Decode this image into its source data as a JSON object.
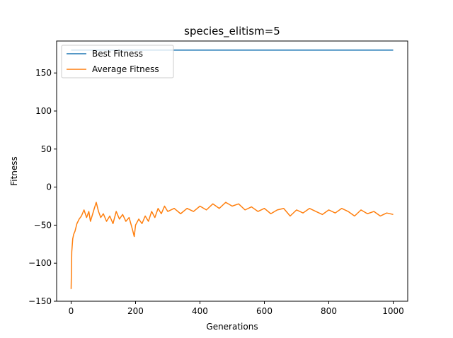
{
  "chart_data": {
    "type": "line",
    "title": "species_elitism=5",
    "xlabel": "Generations",
    "ylabel": "Fitness",
    "xlim": [
      -45,
      1045
    ],
    "ylim": [
      -150,
      192
    ],
    "xticks": [
      0,
      200,
      400,
      600,
      800,
      1000
    ],
    "yticks": [
      -150,
      -100,
      -50,
      0,
      50,
      100,
      150
    ],
    "xtick_labels": [
      "0",
      "200",
      "400",
      "600",
      "800",
      "1000"
    ],
    "ytick_labels": [
      "−150",
      "−100",
      "−50",
      "0",
      "50",
      "100",
      "150"
    ],
    "legend_position": "top-left",
    "grid": false,
    "series": [
      {
        "name": "Best Fitness",
        "color": "#1f77b4",
        "points": [
          [
            0,
            180
          ],
          [
            1000,
            180
          ]
        ]
      },
      {
        "name": "Average Fitness",
        "color": "#ff7f0e",
        "points": [
          [
            0,
            -134
          ],
          [
            2,
            -85
          ],
          [
            5,
            -68
          ],
          [
            8,
            -62
          ],
          [
            12,
            -58
          ],
          [
            18,
            -48
          ],
          [
            25,
            -42
          ],
          [
            32,
            -38
          ],
          [
            40,
            -30
          ],
          [
            48,
            -40
          ],
          [
            55,
            -32
          ],
          [
            60,
            -45
          ],
          [
            65,
            -38
          ],
          [
            72,
            -28
          ],
          [
            78,
            -20
          ],
          [
            85,
            -32
          ],
          [
            92,
            -40
          ],
          [
            100,
            -35
          ],
          [
            110,
            -45
          ],
          [
            120,
            -38
          ],
          [
            130,
            -48
          ],
          [
            140,
            -32
          ],
          [
            150,
            -42
          ],
          [
            160,
            -36
          ],
          [
            170,
            -45
          ],
          [
            180,
            -40
          ],
          [
            190,
            -55
          ],
          [
            196,
            -65
          ],
          [
            200,
            -50
          ],
          [
            210,
            -42
          ],
          [
            220,
            -48
          ],
          [
            230,
            -38
          ],
          [
            240,
            -45
          ],
          [
            250,
            -32
          ],
          [
            260,
            -40
          ],
          [
            270,
            -28
          ],
          [
            280,
            -35
          ],
          [
            290,
            -25
          ],
          [
            300,
            -32
          ],
          [
            320,
            -28
          ],
          [
            340,
            -35
          ],
          [
            360,
            -28
          ],
          [
            380,
            -32
          ],
          [
            400,
            -25
          ],
          [
            420,
            -30
          ],
          [
            440,
            -22
          ],
          [
            460,
            -28
          ],
          [
            480,
            -20
          ],
          [
            500,
            -25
          ],
          [
            520,
            -22
          ],
          [
            540,
            -30
          ],
          [
            560,
            -26
          ],
          [
            580,
            -32
          ],
          [
            600,
            -28
          ],
          [
            620,
            -35
          ],
          [
            640,
            -30
          ],
          [
            660,
            -28
          ],
          [
            680,
            -38
          ],
          [
            700,
            -30
          ],
          [
            720,
            -34
          ],
          [
            740,
            -28
          ],
          [
            760,
            -32
          ],
          [
            780,
            -36
          ],
          [
            800,
            -30
          ],
          [
            820,
            -34
          ],
          [
            840,
            -28
          ],
          [
            860,
            -32
          ],
          [
            880,
            -38
          ],
          [
            900,
            -30
          ],
          [
            920,
            -35
          ],
          [
            940,
            -32
          ],
          [
            960,
            -38
          ],
          [
            980,
            -34
          ],
          [
            1000,
            -36
          ]
        ]
      }
    ]
  }
}
